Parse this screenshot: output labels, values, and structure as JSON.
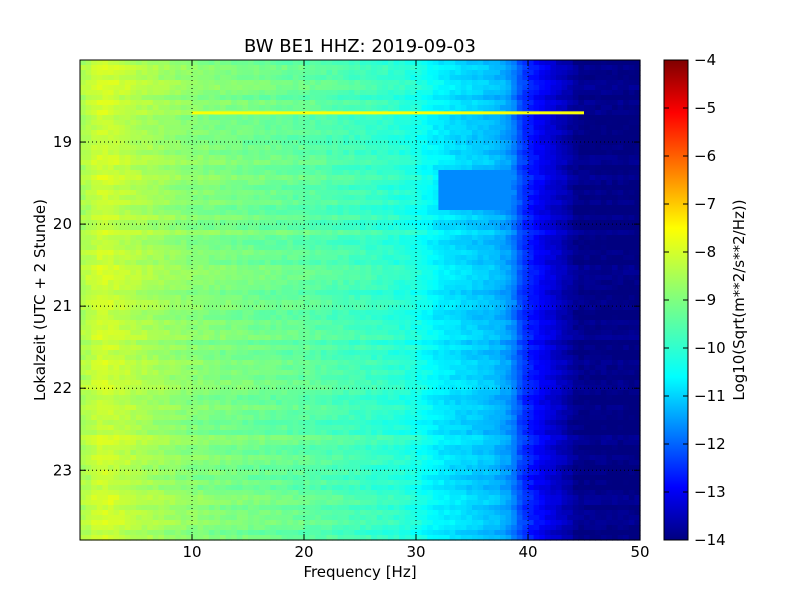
{
  "chart_data": {
    "type": "heatmap",
    "title": "BW BE1 HHZ: 2019-09-03",
    "xlabel": "Frequency [Hz]",
    "ylabel": "Lokalzeit (UTC + 2 Stunde)",
    "xlim": [
      0,
      50
    ],
    "ylim": [
      18.0,
      23.85
    ],
    "y_inverted": true,
    "x_ticks": [
      10,
      20,
      30,
      40,
      50
    ],
    "y_ticks": [
      19,
      20,
      21,
      22,
      23
    ],
    "grid": true,
    "colormap": "jet",
    "colorbar": {
      "label": "Log10(Sqrt(m**2/s**2/Hz))",
      "range": [
        -14,
        -4
      ],
      "ticks": [
        -4,
        -5,
        -6,
        -7,
        -8,
        -9,
        -10,
        -11,
        -12,
        -13,
        -14
      ]
    },
    "freq_profile": [
      [
        0,
        -8.6
      ],
      [
        2,
        -8.2
      ],
      [
        5,
        -8.5
      ],
      [
        10,
        -8.9
      ],
      [
        15,
        -9.1
      ],
      [
        20,
        -9.3
      ],
      [
        25,
        -9.6
      ],
      [
        28,
        -9.8
      ],
      [
        30,
        -10.0
      ],
      [
        32,
        -10.4
      ],
      [
        35,
        -10.7
      ],
      [
        37,
        -10.9
      ],
      [
        38.5,
        -11.3
      ],
      [
        39.5,
        -12.2
      ],
      [
        41,
        -12.8
      ],
      [
        43,
        -13.4
      ],
      [
        44.5,
        -13.9
      ],
      [
        50,
        -14.0
      ]
    ],
    "features": [
      {
        "label": "narrowband line",
        "time": 18.65,
        "freq_range": [
          10,
          45
        ],
        "level": -7.8
      },
      {
        "label": "suppressed band",
        "time_range": [
          19.35,
          19.8
        ],
        "freq_range": [
          32,
          39
        ],
        "level": -11.4
      }
    ]
  }
}
